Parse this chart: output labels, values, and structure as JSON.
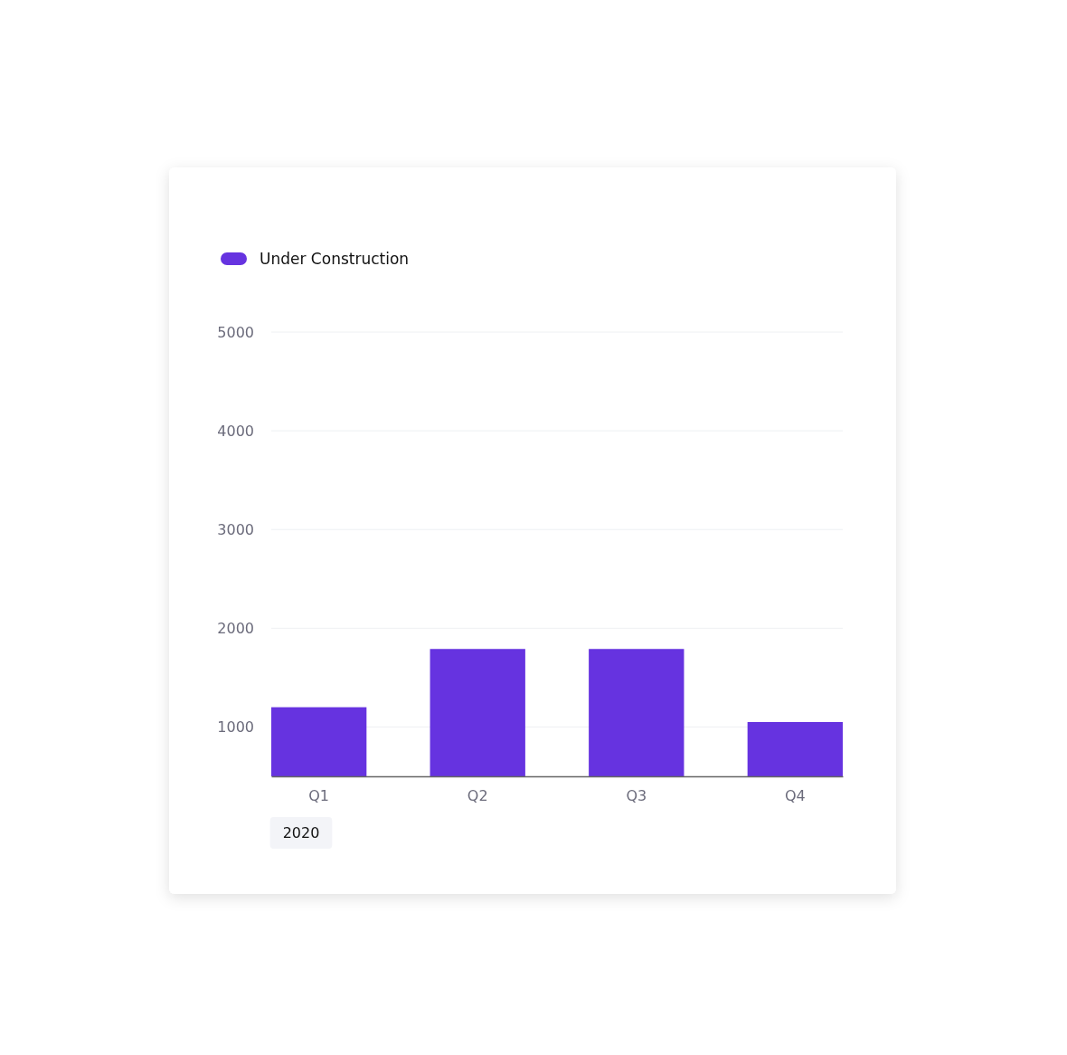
{
  "chart_data": {
    "type": "bar",
    "categories": [
      "Q1",
      "Q2",
      "Q3",
      "Q4"
    ],
    "series": [
      {
        "name": "Under Construction",
        "color": "#6633e0",
        "values": [
          1200,
          1790,
          1790,
          1050
        ]
      }
    ],
    "xlabel": "2020",
    "ylim": [
      500,
      5000
    ],
    "yticks": [
      1000,
      2000,
      3000,
      4000,
      5000
    ],
    "grid": "y",
    "legend": "top left"
  }
}
